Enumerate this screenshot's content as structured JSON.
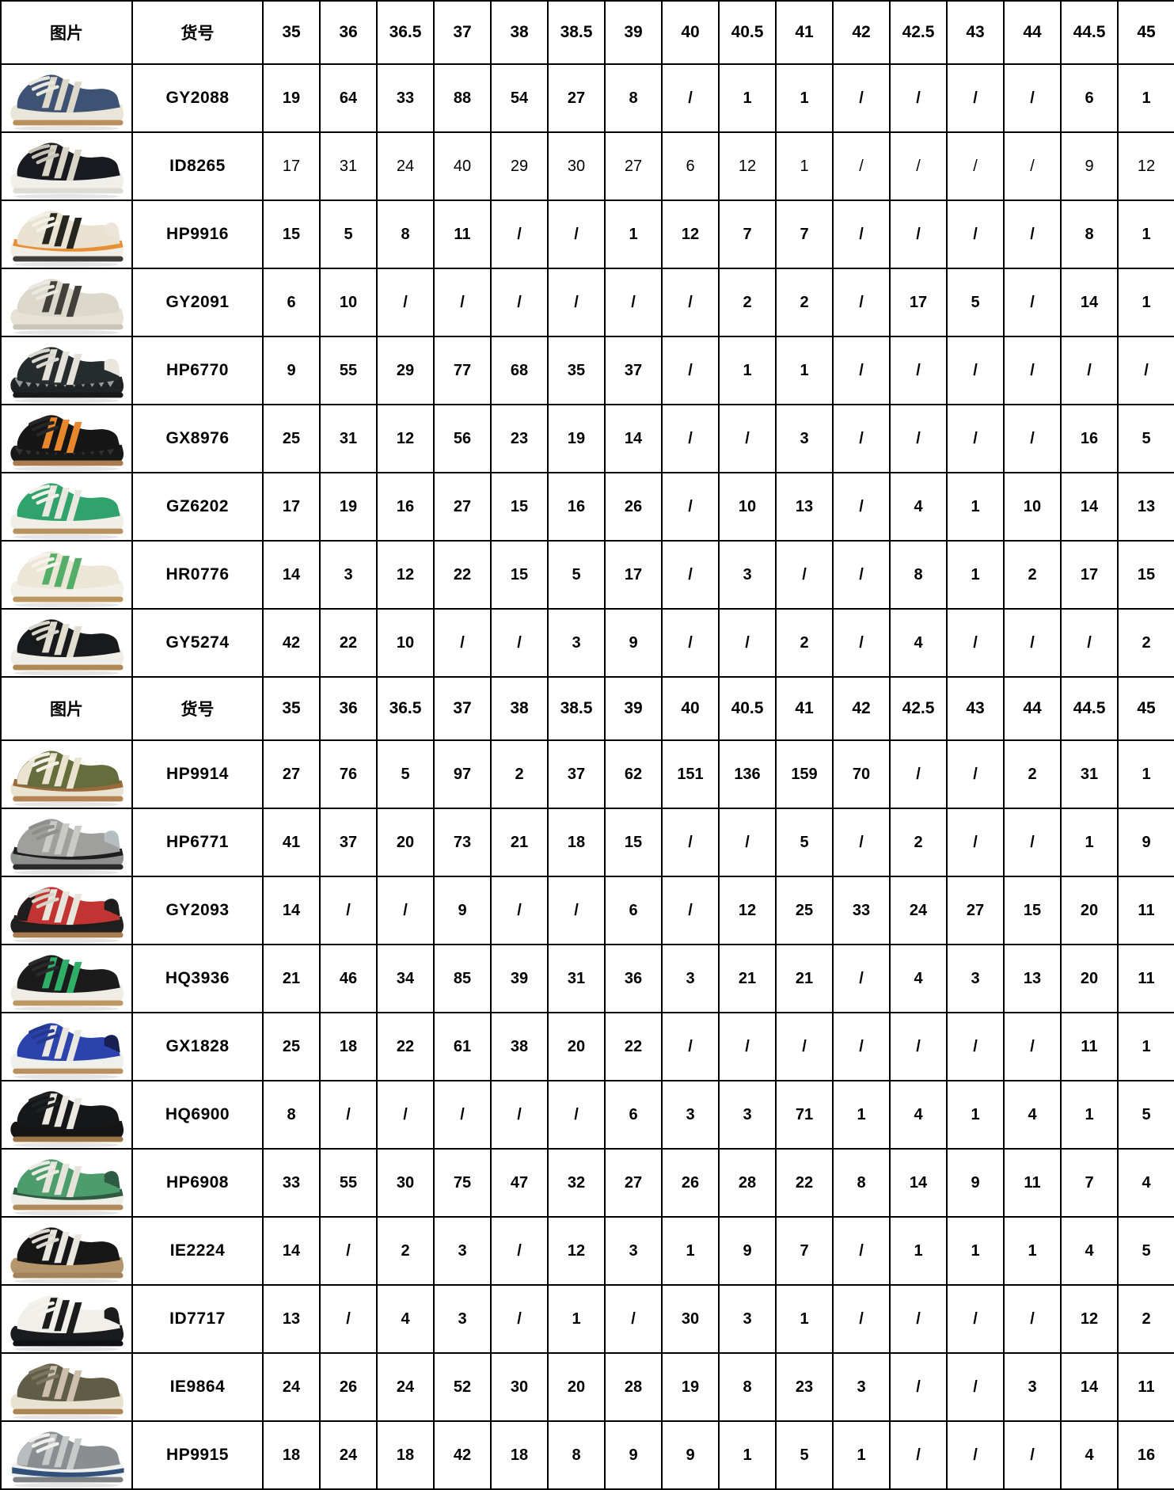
{
  "colors": {
    "header_bg": "#74b84a",
    "grid": "#000000",
    "text": "#000000",
    "row_bg": "#ffffff"
  },
  "table": {
    "header": {
      "image_label": "图片",
      "code_label": "货号",
      "sizes": [
        "35",
        "36",
        "36.5",
        "37",
        "38",
        "38.5",
        "39",
        "40",
        "40.5",
        "41",
        "42",
        "42.5",
        "43",
        "44",
        "44.5",
        "45"
      ]
    },
    "empty_marker": "/",
    "sections": [
      {
        "rows": [
          {
            "code": "GY2088",
            "bold": true,
            "stock": [
              "19",
              "64",
              "33",
              "88",
              "54",
              "27",
              "8",
              "/",
              "1",
              "1",
              "/",
              "/",
              "/",
              "/",
              "6",
              "1"
            ],
            "shoe": {
              "name": "navy-cream-gum",
              "body": "#3e5373",
              "stripe": "#ddd9ca",
              "lace": "#e9e7de",
              "sole": "#e9e6d9",
              "outsole": "#b9905a"
            }
          },
          {
            "code": "ID8265",
            "bold": false,
            "stock": [
              "17",
              "31",
              "24",
              "40",
              "29",
              "30",
              "27",
              "6",
              "12",
              "1",
              "/",
              "/",
              "/",
              "/",
              "9",
              "12"
            ],
            "shoe": {
              "name": "black-cream-white-sole",
              "body": "#181a20",
              "stripe": "#d8d4c6",
              "lace": "#c6c2b6",
              "sole": "#f1efe9",
              "outsole": "#dedcd7"
            }
          },
          {
            "code": "HP9916",
            "bold": true,
            "stock": [
              "15",
              "5",
              "8",
              "11",
              "/",
              "/",
              "1",
              "12",
              "7",
              "7",
              "/",
              "/",
              "/",
              "/",
              "8",
              "1"
            ],
            "shoe": {
              "name": "cream-black-orange",
              "body": "#e9e2d1",
              "stripe": "#26261f",
              "lace": "#f4f1e9",
              "band": "#e78f35",
              "sole": "#f1eee5",
              "outsole": "#3f3e39",
              "heel": "#ece6d8"
            }
          },
          {
            "code": "GY2091",
            "bold": true,
            "stock": [
              "6",
              "10",
              "/",
              "/",
              "/",
              "/",
              "/",
              "/",
              "2",
              "2",
              "/",
              "17",
              "5",
              "/",
              "14",
              "1"
            ],
            "shoe": {
              "name": "lightgray-charcoal",
              "body": "#dcd8cc",
              "stripe": "#41403a",
              "lace": "#eae8e0",
              "sole": "#e6e3d6",
              "outsole": "#c9c5b8"
            }
          },
          {
            "code": "HP6770",
            "bold": true,
            "stock": [
              "9",
              "55",
              "29",
              "77",
              "68",
              "35",
              "37",
              "/",
              "1",
              "1",
              "/",
              "/",
              "/",
              "/",
              "/",
              "/"
            ],
            "shoe": {
              "name": "carbon-white-shark",
              "body": "#262b2d",
              "stripe": "#e3e1da",
              "lace": "#d9d7cf",
              "sole": "#202325",
              "outsole": "#17191b",
              "teeth": "#969c9c",
              "heel": "#e8e6dd"
            }
          },
          {
            "code": "GX8976",
            "bold": true,
            "stock": [
              "25",
              "31",
              "12",
              "56",
              "23",
              "19",
              "14",
              "/",
              "/",
              "3",
              "/",
              "/",
              "/",
              "/",
              "16",
              "5"
            ],
            "shoe": {
              "name": "black-orange-gum",
              "body": "#161616",
              "stripe": "#e8872c",
              "lace": "#262626",
              "sole": "#181818",
              "outsole": "#a87c4e",
              "teeth": "#323232"
            }
          },
          {
            "code": "GZ6202",
            "bold": true,
            "stock": [
              "17",
              "19",
              "16",
              "27",
              "15",
              "16",
              "26",
              "/",
              "10",
              "13",
              "/",
              "4",
              "1",
              "10",
              "14",
              "13"
            ],
            "shoe": {
              "name": "green-white-gum",
              "body": "#2fa36b",
              "stripe": "#e9e7df",
              "lace": "#f2f0ea",
              "sole": "#f0eee6",
              "outsole": "#b8925e"
            }
          },
          {
            "code": "HR0776",
            "bold": true,
            "stock": [
              "14",
              "3",
              "12",
              "22",
              "15",
              "5",
              "17",
              "/",
              "3",
              "/",
              "/",
              "8",
              "1",
              "2",
              "17",
              "15"
            ],
            "shoe": {
              "name": "cream-green-gum",
              "body": "#ece6d6",
              "stripe": "#54ae68",
              "lace": "#f5f3ec",
              "sole": "#f2f0e8",
              "outsole": "#bb985f"
            }
          },
          {
            "code": "GY5274",
            "bold": true,
            "stock": [
              "42",
              "22",
              "10",
              "/",
              "/",
              "3",
              "9",
              "/",
              "/",
              "2",
              "/",
              "4",
              "/",
              "/",
              "/",
              "2"
            ],
            "shoe": {
              "name": "black-cream-gum",
              "body": "#191a1c",
              "stripe": "#e2decf",
              "lace": "#d9d6ca",
              "sole": "#f0eee8",
              "outsole": "#b08955"
            }
          }
        ]
      },
      {
        "rows": [
          {
            "code": "HP9914",
            "bold": true,
            "stock": [
              "27",
              "76",
              "5",
              "97",
              "2",
              "37",
              "62",
              "151",
              "136",
              "159",
              "70",
              "/",
              "/",
              "2",
              "31",
              "1"
            ],
            "shoe": {
              "name": "olive-cream-brown",
              "body": "#656d3c",
              "stripe": "#eae3d0",
              "lace": "#f3f0e7",
              "toe": "#eae3d0",
              "band": "#9b6a3c",
              "sole": "#e9e4d1",
              "outsole": "#b28557"
            }
          },
          {
            "code": "HP6771",
            "bold": true,
            "stock": [
              "41",
              "37",
              "20",
              "73",
              "21",
              "18",
              "15",
              "/",
              "/",
              "5",
              "/",
              "2",
              "/",
              "/",
              "1",
              "9"
            ],
            "shoe": {
              "name": "gray-black-shark",
              "body": "#9fa09e",
              "stripe": "#c9cac8",
              "lace": "#8e8f8d",
              "band": "#1e1e1e",
              "teeth": "#9a9a98",
              "sole": "#8e908e",
              "outsole": "#2a2a2a",
              "heel": "#b6bec2"
            }
          },
          {
            "code": "GY2093",
            "bold": true,
            "stock": [
              "14",
              "/",
              "/",
              "9",
              "/",
              "/",
              "6",
              "/",
              "12",
              "25",
              "33",
              "24",
              "27",
              "15",
              "20",
              "11"
            ],
            "shoe": {
              "name": "red-white-black",
              "body": "#c23431",
              "stripe": "#e7e4dc",
              "lace": "#d6d3c9",
              "toe": "#1e1e1e",
              "band": "#1e1e1e",
              "sole": "#202020",
              "outsole": "#a87c4e",
              "heel": "#1e1e1e"
            }
          },
          {
            "code": "HQ3936",
            "bold": true,
            "stock": [
              "21",
              "46",
              "34",
              "85",
              "39",
              "31",
              "36",
              "3",
              "21",
              "21",
              "/",
              "4",
              "3",
              "13",
              "20",
              "11"
            ],
            "shoe": {
              "name": "black-green-whitesole",
              "body": "#1b1b1b",
              "stripe": "#2fae68",
              "lace": "#2a2a2a",
              "sole": "#efede5",
              "outsole": "#bd9862"
            }
          },
          {
            "code": "GX1828",
            "bold": true,
            "stock": [
              "25",
              "18",
              "22",
              "61",
              "38",
              "20",
              "22",
              "/",
              "/",
              "/",
              "/",
              "/",
              "/",
              "/",
              "11",
              "1"
            ],
            "shoe": {
              "name": "royalblue-white-gum",
              "body": "#2c43ae",
              "stripe": "#e9e7df",
              "lace": "#25388f",
              "sole": "#eff0ec",
              "outsole": "#b8925e",
              "heel": "#182052"
            }
          },
          {
            "code": "HQ6900",
            "bold": true,
            "stock": [
              "8",
              "/",
              "/",
              "/",
              "/",
              "/",
              "6",
              "3",
              "3",
              "71",
              "1",
              "4",
              "1",
              "4",
              "1",
              "5"
            ],
            "shoe": {
              "name": "black-white-gum",
              "body": "#161718",
              "stripe": "#e9e7df",
              "lace": "#202122",
              "sole": "#151516",
              "outsole": "#9d7648"
            }
          },
          {
            "code": "HP6908",
            "bold": true,
            "stock": [
              "33",
              "55",
              "30",
              "75",
              "47",
              "32",
              "27",
              "26",
              "28",
              "22",
              "8",
              "14",
              "9",
              "11",
              "7",
              "4"
            ],
            "shoe": {
              "name": "green-darkgreen-white",
              "body": "#4d9c6c",
              "stripe": "#e6e4da",
              "lace": "#edebe3",
              "band": "#2f5a43",
              "sole": "#eeeee8",
              "outsole": "#b08a58",
              "heel": "#2f5a43"
            }
          },
          {
            "code": "IE2224",
            "bold": true,
            "stock": [
              "14",
              "/",
              "2",
              "3",
              "/",
              "12",
              "3",
              "1",
              "9",
              "7",
              "/",
              "1",
              "1",
              "1",
              "4",
              "5"
            ],
            "shoe": {
              "name": "black-white-gumclear",
              "body": "#171717",
              "stripe": "#e8e6de",
              "lace": "#dbd9d1",
              "sole": "#b5956b",
              "outsole": "#a3845a"
            }
          },
          {
            "code": "ID7717",
            "bold": true,
            "stock": [
              "13",
              "/",
              "4",
              "3",
              "/",
              "1",
              "/",
              "30",
              "3",
              "1",
              "/",
              "/",
              "/",
              "/",
              "12",
              "2"
            ],
            "shoe": {
              "name": "white-black-blacksole",
              "body": "#f1efe9",
              "stripe": "#1c1c1c",
              "lace": "#f4f2ec",
              "sole": "#1a1b1f",
              "outsole": "#101114",
              "heel": "#1c1c1c"
            }
          },
          {
            "code": "IE9864",
            "bold": true,
            "stock": [
              "24",
              "26",
              "24",
              "52",
              "30",
              "20",
              "28",
              "19",
              "8",
              "23",
              "3",
              "/",
              "/",
              "3",
              "14",
              "11"
            ],
            "shoe": {
              "name": "olive-beige-cream",
              "body": "#605d47",
              "stripe": "#cdbfab",
              "lace": "#7a7660",
              "sole": "#e8e3d1",
              "outsole": "#ab8554"
            }
          },
          {
            "code": "HP9915",
            "bold": true,
            "stock": [
              "18",
              "24",
              "18",
              "42",
              "18",
              "8",
              "9",
              "9",
              "1",
              "5",
              "1",
              "/",
              "/",
              "/",
              "4",
              "16"
            ],
            "shoe": {
              "name": "gray-white-navy",
              "body": "#8b8e90",
              "stripe": "#c7cac9",
              "lace": "#f0f1ef",
              "toe": "#b9bcbc",
              "sole": "#f0f1ef",
              "sole_band": "#31507a",
              "outsole": "#7f8284"
            }
          }
        ]
      }
    ]
  }
}
